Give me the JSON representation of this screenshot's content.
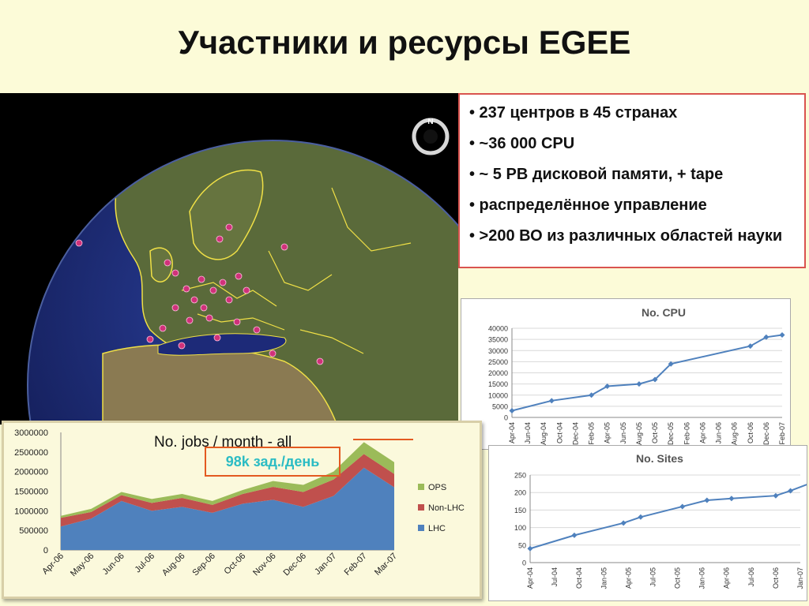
{
  "page": {
    "title": "Участники и ресурсы EGEE"
  },
  "info": {
    "bullets": [
      "• 237 центров в 45 странах",
      "• ~36 000 CPU",
      "• ~ 5 PB дисковой памяти, + tape",
      "• распределённое управление",
      "• >200 ВО из различных областей науки"
    ]
  },
  "colors": {
    "accent_red": "#d9534f",
    "line_blue": "#4f81bd",
    "ops_green": "#9bbb59",
    "nonlhc_red": "#c0504d",
    "lhc_blue": "#4f81bd",
    "rate_text": "#2bbcc4"
  },
  "chart_data": [
    {
      "id": "cpu",
      "type": "line",
      "title": "No. CPU",
      "x": [
        "Apr-04",
        "Jun-04",
        "Aug-04",
        "Oct-04",
        "Dec-04",
        "Feb-05",
        "Apr-05",
        "Jun-05",
        "Aug-05",
        "Oct-05",
        "Dec-05",
        "Feb-06",
        "Apr-06",
        "Jun-06",
        "Aug-06",
        "Oct-06",
        "Dec-06",
        "Feb-07"
      ],
      "points": [
        [
          0,
          3000
        ],
        [
          2.5,
          7500
        ],
        [
          5,
          10000
        ],
        [
          6,
          14000
        ],
        [
          8,
          15000
        ],
        [
          9,
          17000
        ],
        [
          10,
          24000
        ],
        [
          15,
          32000
        ],
        [
          16,
          36000
        ],
        [
          17,
          37000
        ]
      ],
      "ylim": [
        0,
        40000
      ],
      "yticks": [
        0,
        5000,
        10000,
        15000,
        20000,
        25000,
        30000,
        35000,
        40000
      ],
      "grid": true,
      "legend": "none"
    },
    {
      "id": "sites",
      "type": "line",
      "title": "No. Sites",
      "x": [
        "Apr-04",
        "Jul-04",
        "Oct-04",
        "Jan-05",
        "Apr-05",
        "Jul-05",
        "Oct-05",
        "Jan-06",
        "Apr-06",
        "Jul-06",
        "Oct-06",
        "Jan-07"
      ],
      "points": [
        [
          0,
          40
        ],
        [
          1.8,
          78
        ],
        [
          3.8,
          113
        ],
        [
          4.5,
          130
        ],
        [
          6.2,
          160
        ],
        [
          7.2,
          178
        ],
        [
          8.2,
          183
        ],
        [
          10,
          191
        ],
        [
          10.6,
          205
        ],
        [
          11.8,
          237
        ]
      ],
      "ylim": [
        0,
        250
      ],
      "yticks": [
        0,
        50,
        100,
        150,
        200,
        250
      ],
      "grid": true,
      "legend": "none"
    },
    {
      "id": "jobs",
      "type": "area",
      "title": "No. jobs / month - all",
      "annotation": "98k зад./день",
      "categories": [
        "Apr-06",
        "May-06",
        "Jun-06",
        "Jul-06",
        "Aug-06",
        "Sep-06",
        "Oct-06",
        "Nov-06",
        "Dec-06",
        "Jan-07",
        "Feb-07",
        "Mar-07"
      ],
      "series": [
        {
          "name": "LHC",
          "values": [
            600000,
            800000,
            1250000,
            1000000,
            1100000,
            950000,
            1180000,
            1280000,
            1100000,
            1380000,
            2100000,
            1600000
          ]
        },
        {
          "name": "Non-LHC",
          "values": [
            220000,
            170000,
            150000,
            200000,
            230000,
            200000,
            250000,
            330000,
            380000,
            420000,
            350000,
            340000
          ]
        },
        {
          "name": "OPS",
          "values": [
            50000,
            80000,
            80000,
            100000,
            100000,
            100000,
            100000,
            150000,
            180000,
            200000,
            300000,
            300000
          ]
        }
      ],
      "legend_order": [
        "OPS",
        "Non-LHC",
        "LHC"
      ],
      "ylim": [
        0,
        3000000
      ],
      "yticks": [
        0,
        500000,
        1000000,
        1500000,
        2000000,
        2500000,
        3000000
      ],
      "stacked": true,
      "legend": "right"
    }
  ]
}
